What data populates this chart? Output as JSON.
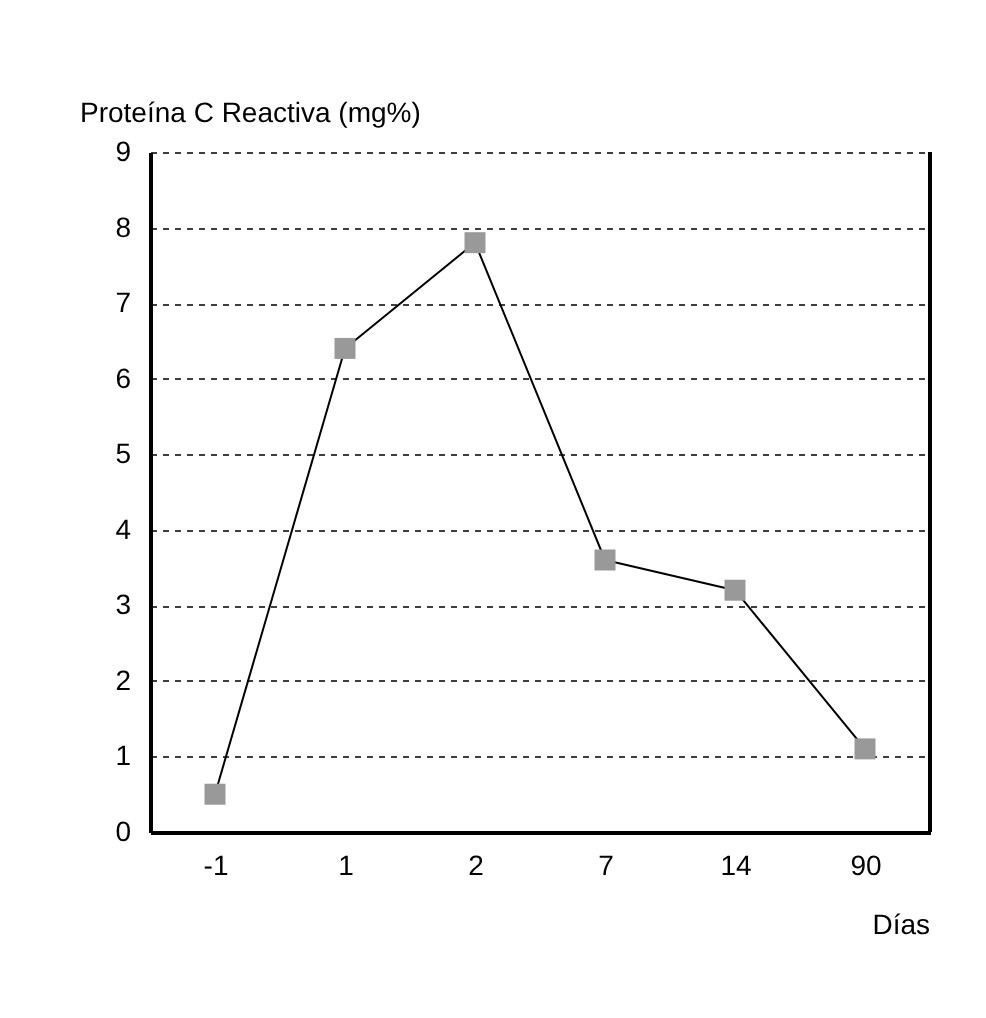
{
  "chart_data": {
    "type": "line",
    "ylabel": "Proteína C Reactiva (mg%)",
    "xlabel": "Días",
    "categories": [
      "-1",
      "1",
      "2",
      "7",
      "14",
      "90"
    ],
    "series": [
      {
        "color": "#999999",
        "values": [
          0.5,
          6.4,
          7.8,
          3.6,
          3.2,
          1.1
        ]
      }
    ],
    "ylim": [
      0,
      9
    ],
    "yticks": [
      0,
      1,
      2,
      3,
      4,
      5,
      6,
      7,
      8,
      9
    ],
    "grid": "y",
    "marker": "square",
    "line_style": "solid"
  }
}
